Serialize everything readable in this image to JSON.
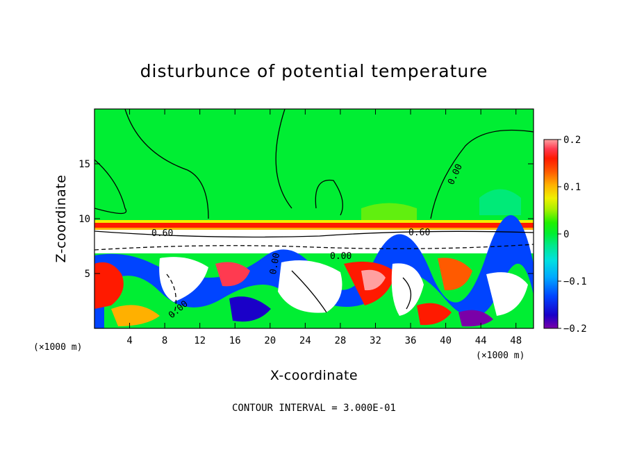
{
  "chart_data": {
    "type": "heatmap",
    "title": "disturbunce of potential temperature",
    "xlabel": "X-coordinate",
    "ylabel": "Z-coordinate",
    "x_unit": "(×1000 m)",
    "z_unit": "(×1000 m)",
    "xlim": [
      0,
      50
    ],
    "ylim": [
      0,
      20
    ],
    "x_ticks": [
      "4",
      "8",
      "12",
      "16",
      "20",
      "24",
      "28",
      "32",
      "36",
      "40",
      "44",
      "48"
    ],
    "y_ticks": [
      "5",
      "10",
      "15"
    ],
    "colorbar": {
      "range": [
        -0.2,
        0.2
      ],
      "tick_labels": [
        "0.2",
        "0.1",
        "0",
        "−0.1",
        "−0.2"
      ],
      "colors": [
        "#7a00a8",
        "#1a00c8",
        "#0044ff",
        "#00a8ff",
        "#00e0e0",
        "#00e88a",
        "#00ee33",
        "#20f000",
        "#a8f000",
        "#f0f000",
        "#ffb000",
        "#ff5a00",
        "#ff1a00",
        "#ff3a50",
        "#ffa0a0"
      ]
    },
    "contour_labels": [
      "0.60",
      "0.60",
      "0.00",
      "0.00",
      "0.00",
      "0.00"
    ],
    "footer": "CONTOUR INTERVAL = 3.000E-01"
  }
}
